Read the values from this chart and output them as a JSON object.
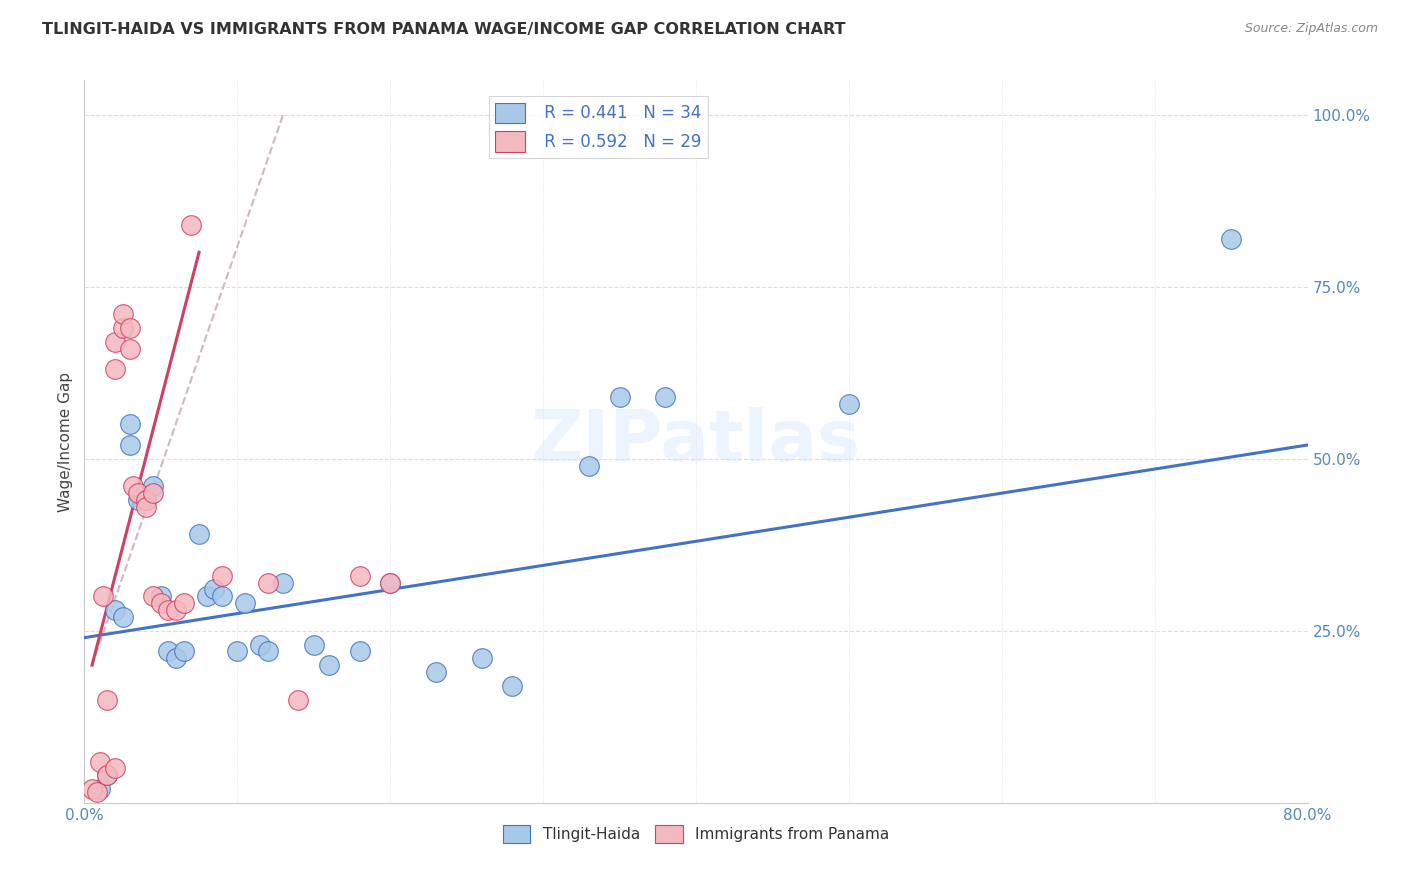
{
  "title": "TLINGIT-HAIDA VS IMMIGRANTS FROM PANAMA WAGE/INCOME GAP CORRELATION CHART",
  "source": "Source: ZipAtlas.com",
  "ylabel": "Wage/Income Gap",
  "legend_r1": "R = 0.441",
  "legend_n1": "N = 34",
  "legend_r2": "R = 0.592",
  "legend_n2": "N = 29",
  "legend_label1": "Tlingit-Haida",
  "legend_label2": "Immigrants from Panama",
  "watermark": "ZIPatlas",
  "blue_color": "#a8c8e8",
  "pink_color": "#f4b8c0",
  "trendline_blue": "#4472c4",
  "trendline_pink": "#d04060",
  "axis_label_color": "#5588bb",
  "grid_color": "#dddddd",
  "blue_scatter": [
    [
      1.0,
      2.0
    ],
    [
      1.5,
      4.0
    ],
    [
      2.0,
      28.0
    ],
    [
      2.5,
      27.0
    ],
    [
      3.0,
      55.0
    ],
    [
      3.0,
      52.0
    ],
    [
      3.5,
      44.0
    ],
    [
      4.0,
      44.0
    ],
    [
      4.5,
      46.0
    ],
    [
      5.0,
      30.0
    ],
    [
      5.5,
      22.0
    ],
    [
      6.0,
      21.0
    ],
    [
      6.5,
      22.0
    ],
    [
      7.5,
      39.0
    ],
    [
      8.0,
      30.0
    ],
    [
      8.5,
      31.0
    ],
    [
      9.0,
      30.0
    ],
    [
      10.0,
      22.0
    ],
    [
      10.5,
      29.0
    ],
    [
      11.5,
      23.0
    ],
    [
      12.0,
      22.0
    ],
    [
      13.0,
      32.0
    ],
    [
      15.0,
      23.0
    ],
    [
      16.0,
      20.0
    ],
    [
      18.0,
      22.0
    ],
    [
      20.0,
      32.0
    ],
    [
      23.0,
      19.0
    ],
    [
      26.0,
      21.0
    ],
    [
      28.0,
      17.0
    ],
    [
      33.0,
      49.0
    ],
    [
      35.0,
      59.0
    ],
    [
      38.0,
      59.0
    ],
    [
      50.0,
      58.0
    ],
    [
      75.0,
      82.0
    ]
  ],
  "pink_scatter": [
    [
      0.5,
      2.0
    ],
    [
      0.8,
      1.5
    ],
    [
      1.0,
      6.0
    ],
    [
      1.2,
      30.0
    ],
    [
      1.5,
      15.0
    ],
    [
      2.0,
      63.0
    ],
    [
      2.0,
      67.0
    ],
    [
      2.5,
      69.0
    ],
    [
      2.5,
      71.0
    ],
    [
      3.0,
      66.0
    ],
    [
      3.0,
      69.0
    ],
    [
      3.2,
      46.0
    ],
    [
      3.5,
      45.0
    ],
    [
      4.0,
      44.0
    ],
    [
      4.0,
      43.0
    ],
    [
      4.5,
      45.0
    ],
    [
      4.5,
      30.0
    ],
    [
      5.0,
      29.0
    ],
    [
      5.5,
      28.0
    ],
    [
      6.0,
      28.0
    ],
    [
      6.5,
      29.0
    ],
    [
      7.0,
      84.0
    ],
    [
      9.0,
      33.0
    ],
    [
      12.0,
      32.0
    ],
    [
      14.0,
      15.0
    ],
    [
      18.0,
      33.0
    ],
    [
      20.0,
      32.0
    ],
    [
      1.5,
      4.0
    ],
    [
      2.0,
      5.0
    ]
  ],
  "blue_trendline": [
    [
      0.0,
      24.0
    ],
    [
      80.0,
      52.0
    ]
  ],
  "pink_trendline_solid": [
    [
      0.5,
      20.0
    ],
    [
      7.5,
      80.0
    ]
  ],
  "pink_trendline_dash": [
    [
      0.5,
      20.0
    ],
    [
      13.0,
      100.0
    ]
  ],
  "xlim": [
    0.0,
    80.0
  ],
  "ylim": [
    0.0,
    105.0
  ],
  "ytick_locs": [
    25.0,
    50.0,
    75.0,
    100.0
  ],
  "xtick_locs": [
    0.0,
    80.0
  ]
}
